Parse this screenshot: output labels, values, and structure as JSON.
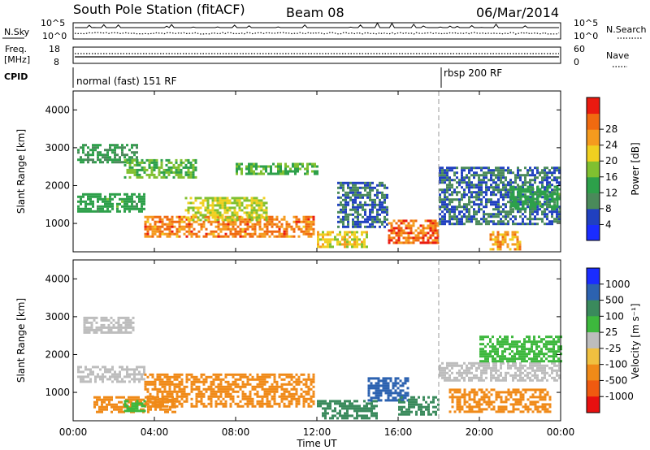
{
  "header": {
    "station": "South Pole Station (fitACF)",
    "beam": "Beam 08",
    "date": "06/Mar/2014"
  },
  "panels": {
    "nsky": {
      "label": "N.Sky",
      "ticks": [
        "10^5",
        "10^0"
      ],
      "right_ticks": [
        "10^5",
        "10^0"
      ],
      "right_label": "N.Search"
    },
    "freq": {
      "label_top": "Freq.",
      "label_bottom": "[MHz]",
      "ticks": [
        "18",
        "8"
      ],
      "right_ticks": [
        "60",
        "0"
      ],
      "right_label": "Nave"
    },
    "cpid": {
      "label": "CPID",
      "modes": [
        "normal (fast) 151 RF",
        "rbsp 200 RF"
      ]
    }
  },
  "x_axis": {
    "label": "Time UT",
    "ticks": [
      "00:00",
      "04:00",
      "08:00",
      "12:00",
      "16:00",
      "20:00",
      "00:00"
    ]
  },
  "chart_data": [
    {
      "type": "heatmap",
      "title": "",
      "xlabel": "Time UT",
      "ylabel": "Slant Range [km]",
      "xlim": [
        0,
        24
      ],
      "ylim": [
        250,
        4500
      ],
      "yticks": [
        1000,
        2000,
        3000,
        4000
      ],
      "colorbar": {
        "label": "Power [dB]",
        "ticks": [
          "4",
          "8",
          "12",
          "16",
          "20",
          "24",
          "28"
        ],
        "colors": [
          "#1a2cff",
          "#2040c0",
          "#4a8a5a",
          "#2da04a",
          "#80c030",
          "#f0d020",
          "#f59b1e",
          "#f06a10",
          "#ea1a10"
        ]
      },
      "mode_change_hour": 18.0,
      "regions": [
        {
          "t0": 0.2,
          "t1": 3.5,
          "r0": 1300,
          "r1": 1800,
          "value": 12
        },
        {
          "t0": 0.2,
          "t1": 3.2,
          "r0": 2600,
          "r1": 3100,
          "value": 10
        },
        {
          "t0": 2.5,
          "t1": 6.0,
          "r0": 2200,
          "r1": 2700,
          "value": 14
        },
        {
          "t0": 3.5,
          "t1": 11.8,
          "r0": 650,
          "r1": 1200,
          "value": 26
        },
        {
          "t0": 5.5,
          "t1": 9.5,
          "r0": 1100,
          "r1": 1700,
          "value": 18
        },
        {
          "t0": 8.0,
          "t1": 12.0,
          "r0": 2300,
          "r1": 2600,
          "value": 14
        },
        {
          "t0": 12.0,
          "t1": 14.5,
          "r0": 350,
          "r1": 800,
          "value": 20
        },
        {
          "t0": 13.0,
          "t1": 15.5,
          "r0": 900,
          "r1": 2100,
          "value": 6
        },
        {
          "t0": 15.5,
          "t1": 18.0,
          "r0": 500,
          "r1": 1100,
          "value": 28
        },
        {
          "t0": 18.0,
          "t1": 24.0,
          "r0": 1000,
          "r1": 2500,
          "value": 6
        },
        {
          "t0": 20.5,
          "t1": 22.0,
          "r0": 300,
          "r1": 800,
          "value": 24
        },
        {
          "t0": 21.5,
          "t1": 24.0,
          "r0": 1400,
          "r1": 2000,
          "value": 12
        }
      ]
    },
    {
      "type": "heatmap",
      "title": "",
      "xlabel": "Time UT",
      "ylabel": "Slant Range [km]",
      "xlim": [
        0,
        24
      ],
      "ylim": [
        250,
        4500
      ],
      "yticks": [
        1000,
        2000,
        3000,
        4000
      ],
      "colorbar": {
        "label": "Velocity [m s⁻¹]",
        "ticks": [
          "1000",
          "500",
          "100",
          "25",
          "-25",
          "-100",
          "-500",
          "-1000"
        ],
        "colors": [
          "#1a2cff",
          "#2c62b0",
          "#3a8a5c",
          "#3db83d",
          "#bdbdbd",
          "#f0c040",
          "#f08a18",
          "#f05a10",
          "#e81010"
        ]
      },
      "mode_change_hour": 18.0,
      "regions": [
        {
          "t0": 0.2,
          "t1": 3.5,
          "r0": 1300,
          "r1": 1700,
          "value": 0
        },
        {
          "t0": 0.5,
          "t1": 3.0,
          "r0": 2600,
          "r1": 3000,
          "value": 0
        },
        {
          "t0": 3.5,
          "t1": 11.8,
          "r0": 600,
          "r1": 1500,
          "value": -300
        },
        {
          "t0": 1.0,
          "t1": 5.0,
          "r0": 500,
          "r1": 900,
          "value": -200
        },
        {
          "t0": 2.5,
          "t1": 3.5,
          "r0": 500,
          "r1": 800,
          "value": 80
        },
        {
          "t0": 12.0,
          "t1": 15.0,
          "r0": 300,
          "r1": 800,
          "value": 150
        },
        {
          "t0": 14.5,
          "t1": 16.5,
          "r0": 800,
          "r1": 1400,
          "value": 700
        },
        {
          "t0": 16.0,
          "t1": 18.0,
          "r0": 400,
          "r1": 900,
          "value": 150
        },
        {
          "t0": 18.0,
          "t1": 24.0,
          "r0": 1300,
          "r1": 1800,
          "value": 0
        },
        {
          "t0": 18.5,
          "t1": 23.5,
          "r0": 500,
          "r1": 1100,
          "value": -300
        },
        {
          "t0": 20.0,
          "t1": 24.0,
          "r0": 1800,
          "r1": 2500,
          "value": 60
        }
      ]
    }
  ]
}
